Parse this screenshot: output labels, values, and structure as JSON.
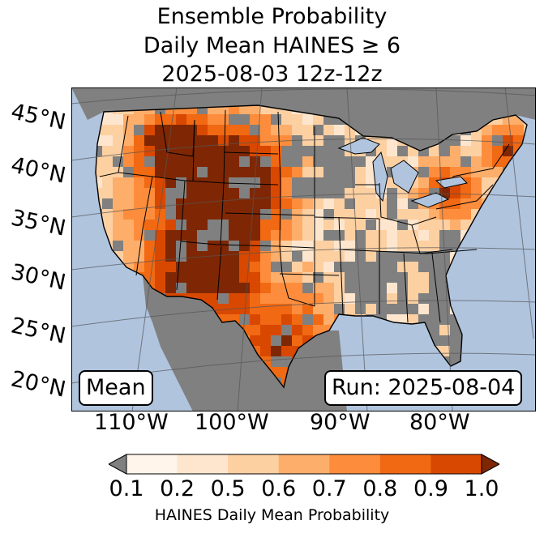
{
  "title": {
    "line1": "Ensemble Probability",
    "line2": "Daily Mean HAINES ≥ 6",
    "line3": "2025-08-03 12z-12z"
  },
  "map": {
    "lat_labels": [
      "45°N",
      "40°N",
      "35°N",
      "30°N",
      "25°N",
      "20°N"
    ],
    "lon_labels": [
      "110°W",
      "100°W",
      "90°W",
      "80°W"
    ],
    "mean_label": "Mean",
    "run_label": "Run: 2025-08-04",
    "colors": {
      "ocean": "#b0c4de",
      "land_low": "#808080",
      "gridline": "#555555",
      "border": "#000000"
    }
  },
  "colorbar": {
    "label": "HAINES Daily Mean Probability",
    "ticks": [
      "0.1",
      "0.2",
      "0.5",
      "0.6",
      "0.7",
      "0.8",
      "0.9",
      "1.0"
    ],
    "under_color": "#808080",
    "over_color": "#7f2704",
    "colors": [
      "#fff5eb",
      "#fee6ce",
      "#fdd0a2",
      "#fdae6b",
      "#fd8d3c",
      "#f16913",
      "#d94801"
    ]
  }
}
